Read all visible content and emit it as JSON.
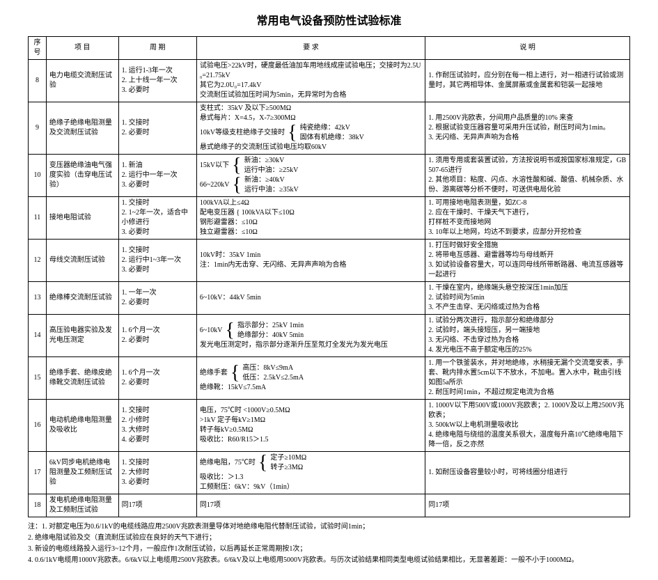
{
  "title": "常用电气设备预防性试验标准",
  "columns": [
    "序号",
    "项 目",
    "周 期",
    "要 求",
    "说 明"
  ],
  "rows": [
    {
      "no": "8",
      "item": "电力电缆交流耐压试验",
      "period": "1. 运行1-3年一次\n2. 上十线一年一次\n3. 必要时",
      "req": "试验电压>22kV时，硬度最低油加车用地线成座试验电压；交接时为2.5U₀=21.75kV\n其它为2.0U₀=17.4kV\n交流耐压试验加压时间为5min，无异常时为合格",
      "desc": "1. 作耐压试验时，应分别在每一相上进行，对一相进行试验或测量时，其它两相导体、金属屏蔽或金属套和铠装一起接地"
    },
    {
      "no": "9",
      "item": "绝缘子绝缘电阻测量及交流耐压试验",
      "period": "1. 交接时\n2. 必要时",
      "req_complex": {
        "line1": "支柱式：35kV 及以下≥500MΩ",
        "line2_left": "悬式每片：X=4.5，X-7≥300MΩ",
        "mid_left": "10kV等级支柱绝缘子交接时",
        "brace_items": [
          "纯瓷绝缘：42kV",
          "固体有机绝缘：38kV"
        ],
        "bottom": "悬式绝缘子的交流耐压试验电压均取60kV"
      },
      "desc": "1. 用2500V兆欧表，分间用户品质量的10% 来查\n2. 根据试验变压器容量可采用升压试验，耐压时间为1min。\n3. 无闪络、无异声声响为合格"
    },
    {
      "no": "10",
      "item": "变压器绝缘油电气强度实验（击穿电压试验）",
      "period": "1. 新油\n2. 运行中一年一次\n3. 必要时",
      "req_complex": {
        "left_items": [
          "15kV以下",
          "66~220kV"
        ],
        "sub_items": [
          [
            "新油：≥30kV",
            "运行中油：≥25kV"
          ],
          [
            "新油：≥40kV",
            "运行中油：≥35kV"
          ]
        ]
      },
      "desc": "1. 须用专用或套装置试验，方法按说明书或按国家标准规定，GB507-65进行\n2. 其他项目：粘度、闪点、水溶性酸和碱、酸值、机械杂质、水份、游离碳等分析不便时，可送供电局化验"
    },
    {
      "no": "11",
      "item": "接地电阻试验",
      "period": "1. 交接时\n2. 1~2年一次，适合中小修进行\n3. 必要时",
      "req_complex": {
        "items": [
          "100kVA以上≤4Ω",
          "配电变压器 { 100kVA以下≤10Ω",
          "钢形避雷器：≤10Ω",
          "独立避雷器：≤10Ω"
        ]
      },
      "desc": "1. 可用接地电阻表测量，如ZC-8\n2. 应在干燥时、干燥天气下进行，\n打样桩不变而接地网\n3. 10年以上地网，均达不到要求，应部分开挖检查"
    },
    {
      "no": "12",
      "item": "母线交流耐压试验",
      "period": "1. 交接时\n2. 运行中1~3年一次\n3. 必要时",
      "req": "10kV时：35kV  1min\n注：1min内无击穿、无闪络、无异声声响为合格",
      "desc": "1. 打压时做好安全措施\n2. 将带电互感器、避雷器等均与母线断开\n3. 如试验设备容量大，可以连同母线所带断路器、电流互感器等一起进行"
    },
    {
      "no": "13",
      "item": "绝缘棒交流耐压试验",
      "period": "1. 一年一次\n2. 必要时",
      "req": "6~10kV：44kV  5min",
      "desc": "1. 干燥在室内，绝缘端头悬空按深压1min加压\n2. 试验时间为5min\n3. 不产生击穿、无闪络或过热为合格"
    },
    {
      "no": "14",
      "item": "高压验电器实验及发光电压测定",
      "period": "1. 6个月一次\n2. 必要时",
      "req_complex": {
        "left": "6~10kV",
        "items": [
          "指示部分：25kV  1min",
          "绝缘部分：40kV  5min"
        ],
        "bottom": "发光电压测定时，指示部分逐渐升压至氖灯全发光为发光电压"
      },
      "desc": "1. 试验分两次进行，指示部分和绝缘部分\n2. 试验时，端头接短压，另一端接地\n3. 无闪络、不击穿过热为合格\n4. 发光电压不高于额定电压的25%"
    },
    {
      "no": "15",
      "item": "绝缘手套、绝缘皮绝缘靴交流耐压试验",
      "period": "1. 6个月一次\n2. 必要时",
      "req_complex": {
        "left": "绝缘手套",
        "items": [
          "高压：8kV≤9mA",
          "低压：2.5kV≤2.5mA"
        ],
        "bottom": "绝缘靴：15kV≤7.5mA"
      },
      "desc": "1. 用一个铁釜装水，并对地绝缘，水稍接无漏个交流毫安表，手套、靴内排水置5cm以下不放水，不加电。置入水中，靴由引线如图5a所示\n2. 耐压时间1min，不超过规定电流为合格"
    },
    {
      "no": "16",
      "item": "电动机绝缘电阻测量及吸收比",
      "period": "1. 交接时\n2. 小修时\n3. 大修时\n4. 必要时",
      "req": "电压，75℃时 <1000V≥0.5MΩ\n>1kV 定子每kV≥1MΩ\n转子每kV≥0.5MΩ\n吸收比：R60/R15＞1.5",
      "desc": "1. 1000V以下用500V或1000V兆欧表；2. 1000V及以上用2500V兆欧表；\n3. 500kW以上电机测量吸收比\n4. 绝缘电阻与绕组的温度关系很大，温度每升高10℃绝缘电阻下降一倍，反之亦然"
    },
    {
      "no": "17",
      "item": "6kV同步电机绝缘电阻测量及工频耐压试验",
      "period": "1. 交接时\n2. 大修时\n3. 必要时",
      "req_complex": {
        "left": "绝缘电阻，75℃时",
        "items": [
          "定子≥10MΩ",
          "转子≥3MΩ"
        ],
        "bottom": "吸收比：＞1.3\n工频耐压：6kV：9kV（1min）"
      },
      "desc": "1. 如耐压设备容量较小时，可将线圈分组进行"
    },
    {
      "no": "18",
      "item": "发电机绝缘电阻测量及工频耐压试验",
      "period": "同17项",
      "req": "同17项",
      "desc": "同17项"
    }
  ],
  "notes": [
    "注：1. 对额定电压为0.6/1kV的电缆线路应用2500V兆欧表测量导体对地绝缘电阻代替耐压试验，试验时间1min；",
    "2. 绝缘电阻试验及交（直流耐压试验应在良好的天气下进行；",
    "3. 新设的电缆线路投入运行3~12个月，一般应作1次耐压试验，以后再延长正常周期按1次；",
    "4. 0.6/1kV电缆用1000V兆欧表。6/6kV以上电缆用2500V兆欧表。6/6kV及以上电缆用5000V兆欧表。与历次试验结果相同类型电缆试验结果相比，无显著差距：一般不小于1000MΩ。"
  ]
}
